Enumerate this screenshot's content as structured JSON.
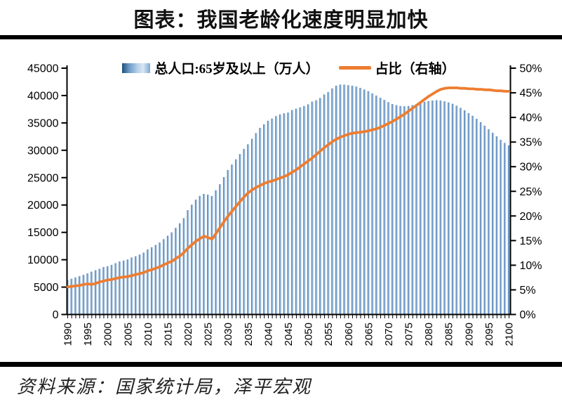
{
  "title": "图表：我国老龄化速度明显加快",
  "source": "资料来源：国家统计局，泽平宏观",
  "legend": {
    "bar_series_label": "总人口:65岁及以上（万人）",
    "line_series_label": "占比（右轴）"
  },
  "colors": {
    "bar_gradient_dark": "#3f6ea6",
    "bar_gradient_mid": "#88afd5",
    "bar_gradient_light": "#dbe8f5",
    "line": "#ed7d31",
    "axis": "#000000",
    "rule": "#000000"
  },
  "chart_data": {
    "type": "bar",
    "note_type": "combo bar + line, dual axis",
    "title": "图表：我国老龄化速度明显加快",
    "x_start": 1990,
    "x_end": 2100,
    "x_tick_step": 5,
    "x_tick_labels": [
      "1990",
      "1995",
      "2000",
      "2005",
      "2010",
      "2015",
      "2020",
      "2025",
      "2030",
      "2035",
      "2040",
      "2045",
      "2050",
      "2055",
      "2060",
      "2065",
      "2070",
      "2075",
      "2080",
      "2085",
      "2090",
      "2095",
      "2100"
    ],
    "left_axis": {
      "min": 0,
      "max": 45000,
      "step": 5000,
      "tick_labels": [
        "0",
        "5000",
        "10000",
        "15000",
        "20000",
        "25000",
        "30000",
        "35000",
        "40000",
        "45000"
      ]
    },
    "right_axis": {
      "min": 0,
      "max": 50,
      "step": 5,
      "suffix": "%",
      "tick_labels": [
        "0%",
        "5%",
        "10%",
        "15%",
        "20%",
        "25%",
        "30%",
        "35%",
        "40%",
        "45%",
        "50%"
      ]
    },
    "grid": false,
    "legend_position": "top-center",
    "series": [
      {
        "name": "总人口:65岁及以上（万人）",
        "type": "bar",
        "axis": "left",
        "values": [
          6300,
          6540,
          6780,
          7010,
          7240,
          7510,
          7830,
          8090,
          8360,
          8680,
          8820,
          9060,
          9380,
          9690,
          9860,
          10060,
          10420,
          10640,
          10960,
          11310,
          11890,
          12290,
          12710,
          13160,
          13760,
          14390,
          15000,
          15830,
          16660,
          17600,
          19060,
          20060,
          20980,
          21680,
          22020,
          21900,
          21650,
          22700,
          23800,
          25100,
          26400,
          27400,
          28350,
          29300,
          30250,
          31100,
          32100,
          33150,
          34100,
          34750,
          35400,
          35800,
          36250,
          36550,
          36750,
          36900,
          37350,
          37600,
          37850,
          38100,
          38400,
          38900,
          39150,
          39550,
          40200,
          40650,
          41300,
          41800,
          42000,
          42000,
          41900,
          41800,
          41650,
          41400,
          41100,
          40800,
          40400,
          40000,
          39600,
          39200,
          38800,
          38450,
          38250,
          38100,
          38050,
          38100,
          38250,
          38450,
          38650,
          38850,
          39000,
          39100,
          39150,
          39100,
          38950,
          38750,
          38500,
          38150,
          37750,
          37300,
          36800,
          36300,
          35750,
          35150,
          34500,
          33850,
          33200,
          32550,
          31900,
          31350,
          30900
        ]
      },
      {
        "name": "占比（右轴）",
        "type": "line",
        "axis": "right",
        "values": [
          5.6,
          5.7,
          5.8,
          5.9,
          6.1,
          6.2,
          6.1,
          6.3,
          6.6,
          6.8,
          7.0,
          7.1,
          7.3,
          7.5,
          7.6,
          7.7,
          7.9,
          8.1,
          8.3,
          8.5,
          8.9,
          9.1,
          9.4,
          9.7,
          10.1,
          10.5,
          10.8,
          11.4,
          11.9,
          12.6,
          13.5,
          14.2,
          14.9,
          15.4,
          15.9,
          15.6,
          15.3,
          16.5,
          17.7,
          18.9,
          20.0,
          21.0,
          22.0,
          23.0,
          23.9,
          24.7,
          25.3,
          25.8,
          26.2,
          26.6,
          26.9,
          27.1,
          27.4,
          27.7,
          28.0,
          28.4,
          28.9,
          29.4,
          30.0,
          30.6,
          31.2,
          31.8,
          32.5,
          33.2,
          33.9,
          34.5,
          35.1,
          35.6,
          36.0,
          36.3,
          36.6,
          36.8,
          36.9,
          37.0,
          37.1,
          37.3,
          37.5,
          37.7,
          38.0,
          38.4,
          38.8,
          39.2,
          39.7,
          40.2,
          40.7,
          41.3,
          41.9,
          42.5,
          43.1,
          43.7,
          44.3,
          44.8,
          45.3,
          45.7,
          45.9,
          46.0,
          46.0,
          46.0,
          45.9,
          45.9,
          45.8,
          45.8,
          45.7,
          45.7,
          45.6,
          45.6,
          45.5,
          45.4,
          45.4,
          45.3,
          45.3
        ]
      }
    ]
  }
}
